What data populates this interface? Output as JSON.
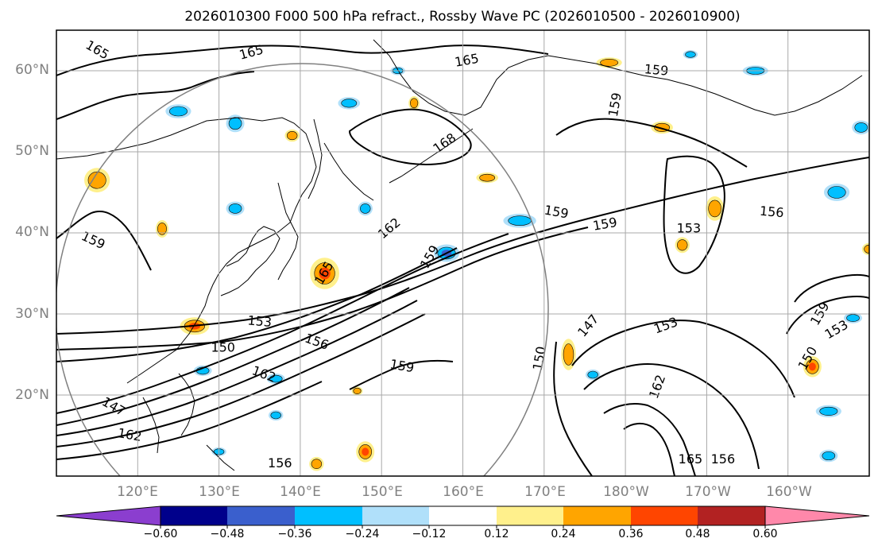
{
  "title": "2026010300 F000 500 hPa refract., Rossby Wave PC (2026010500 - 2026010900)",
  "map": {
    "lat_labels": [
      "60°N",
      "50°N",
      "40°N",
      "30°N",
      "20°N"
    ],
    "lon_labels": [
      "120°E",
      "130°E",
      "140°E",
      "150°E",
      "160°E",
      "170°E",
      "180°W",
      "170°W",
      "160°W"
    ],
    "contour_labels": [
      {
        "text": "165",
        "lon": 115.0,
        "lat": 62.5,
        "angle": 30
      },
      {
        "text": "165",
        "lon": 134.0,
        "lat": 62.2,
        "angle": -15
      },
      {
        "text": "165",
        "lon": 160.5,
        "lat": 61.2,
        "angle": -10
      },
      {
        "text": "159",
        "lon": 183.8,
        "lat": 60.0,
        "angle": 5
      },
      {
        "text": "159",
        "lon": 178.8,
        "lat": 55.8,
        "angle": -80
      },
      {
        "text": "168",
        "lon": 157.8,
        "lat": 51.0,
        "angle": -35
      },
      {
        "text": "159",
        "lon": 114.5,
        "lat": 39.0,
        "angle": 25
      },
      {
        "text": "162",
        "lon": 151.0,
        "lat": 40.5,
        "angle": -40
      },
      {
        "text": "159",
        "lon": 156.0,
        "lat": 37.0,
        "angle": -60
      },
      {
        "text": "159",
        "lon": 171.5,
        "lat": 42.5,
        "angle": 10
      },
      {
        "text": "159",
        "lon": 177.5,
        "lat": 41.0,
        "angle": -10
      },
      {
        "text": "153",
        "lon": 187.8,
        "lat": 40.5,
        "angle": 0
      },
      {
        "text": "156",
        "lon": 198.0,
        "lat": 42.5,
        "angle": 5
      },
      {
        "text": "165",
        "lon": 143.0,
        "lat": 35.0,
        "angle": -60
      },
      {
        "text": "153",
        "lon": 135.0,
        "lat": 29.0,
        "angle": 5
      },
      {
        "text": "150",
        "lon": 130.5,
        "lat": 25.8,
        "angle": 0
      },
      {
        "text": "156",
        "lon": 142.0,
        "lat": 26.5,
        "angle": 20
      },
      {
        "text": "162",
        "lon": 135.5,
        "lat": 22.5,
        "angle": 20
      },
      {
        "text": "159",
        "lon": 152.5,
        "lat": 23.5,
        "angle": 10
      },
      {
        "text": "147",
        "lon": 175.5,
        "lat": 28.5,
        "angle": -50
      },
      {
        "text": "150",
        "lon": 169.5,
        "lat": 24.5,
        "angle": -80
      },
      {
        "text": "153",
        "lon": 185.0,
        "lat": 28.5,
        "angle": -20
      },
      {
        "text": "159",
        "lon": 204.0,
        "lat": 30.0,
        "angle": -60
      },
      {
        "text": "153",
        "lon": 206.0,
        "lat": 28.0,
        "angle": -30
      },
      {
        "text": "150",
        "lon": 202.5,
        "lat": 24.5,
        "angle": -60
      },
      {
        "text": "162",
        "lon": 184.0,
        "lat": 21.0,
        "angle": -70
      },
      {
        "text": "147",
        "lon": 117.0,
        "lat": 18.5,
        "angle": 30
      },
      {
        "text": "162",
        "lon": 119.0,
        "lat": 15.0,
        "angle": 10
      },
      {
        "text": "156",
        "lon": 137.5,
        "lat": 11.5,
        "angle": 0
      },
      {
        "text": "165",
        "lon": 188.0,
        "lat": 12.0,
        "angle": 0
      },
      {
        "text": "156",
        "lon": 192.0,
        "lat": 12.0,
        "angle": 0
      }
    ]
  },
  "colorbar": {
    "tick_labels": [
      "−0.60",
      "−0.48",
      "−0.36",
      "−0.24",
      "−0.12",
      "0.12",
      "0.24",
      "0.36",
      "0.48",
      "0.60"
    ],
    "colors": [
      "#8b3ecf",
      "#00008b",
      "#3a5fcd",
      "#00bfff",
      "#b0e0fa",
      "#ffffff",
      "#fff08c",
      "#ffa500",
      "#ff4500",
      "#b22222",
      "#ff88aa"
    ]
  },
  "colors": {
    "pos1": "#fff08c",
    "pos2": "#ffa500",
    "pos3": "#ff4500",
    "neg1": "#b0e0fa",
    "neg2": "#00bfff",
    "neg3": "#3a5fcd"
  }
}
